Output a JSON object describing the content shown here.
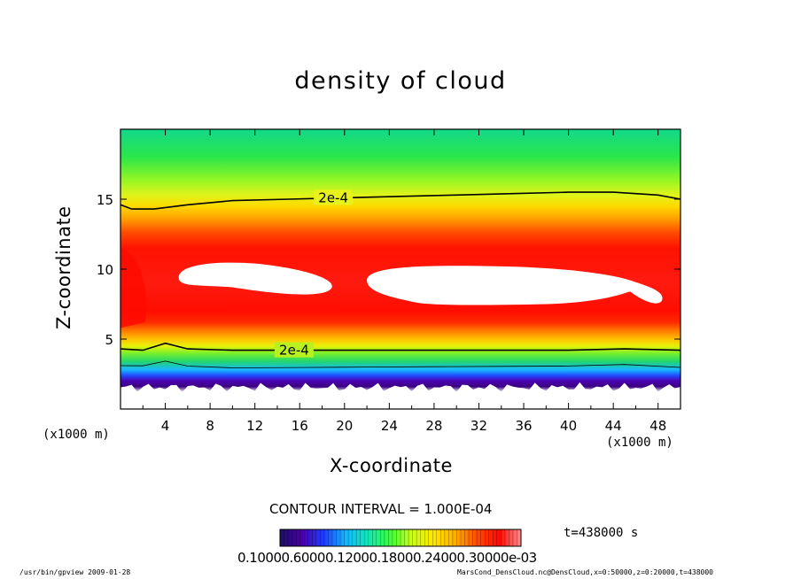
{
  "chart_data": {
    "type": "heatmap",
    "title": "density of cloud",
    "xlabel": "X-coordinate",
    "ylabel": "Z-coordinate",
    "x_unit_label": "(x1000 m)",
    "y_unit_label": "(x1000 m)",
    "xlim": [
      0,
      50
    ],
    "ylim": [
      0,
      20
    ],
    "x_ticks": [
      4,
      8,
      12,
      16,
      20,
      24,
      28,
      32,
      36,
      40,
      44,
      48
    ],
    "y_ticks": [
      5,
      10,
      15
    ],
    "contour_interval_text": "CONTOUR INTERVAL = 1.000E-04",
    "contour_label": "2e-4",
    "contour_levels_labeled": [
      {
        "level": "2e-4",
        "x": 19,
        "z": 15.1
      },
      {
        "level": "2e-4",
        "x": 15.5,
        "z": 4.2
      }
    ],
    "upper_contour_2e-4": [
      [
        0,
        14.6
      ],
      [
        1,
        14.3
      ],
      [
        3,
        14.3
      ],
      [
        6,
        14.6
      ],
      [
        10,
        14.9
      ],
      [
        15,
        15.0
      ],
      [
        20,
        15.1
      ],
      [
        25,
        15.2
      ],
      [
        30,
        15.3
      ],
      [
        35,
        15.4
      ],
      [
        40,
        15.5
      ],
      [
        44,
        15.5
      ],
      [
        48,
        15.3
      ],
      [
        50,
        15.0
      ]
    ],
    "lower_contour_2e-4": [
      [
        0,
        4.3
      ],
      [
        2,
        4.2
      ],
      [
        4,
        4.7
      ],
      [
        6,
        4.3
      ],
      [
        10,
        4.2
      ],
      [
        16,
        4.2
      ],
      [
        22,
        4.2
      ],
      [
        28,
        4.2
      ],
      [
        34,
        4.2
      ],
      [
        40,
        4.2
      ],
      [
        45,
        4.3
      ],
      [
        50,
        4.2
      ]
    ],
    "white_regions_above_max": [
      {
        "x_range": [
          5.2,
          19
        ],
        "z_range": [
          8.4,
          10.5
        ]
      },
      {
        "x_range": [
          22,
          48.5
        ],
        "z_range": [
          7.4,
          10.3
        ]
      }
    ],
    "colorbar": {
      "ticks_text": "0.10000.60000.12000.18000.24000.30000e-03",
      "colors": [
        "#1a0f60",
        "#4b00a8",
        "#1e3cff",
        "#15b6ff",
        "#12e6b8",
        "#39ff3a",
        "#c8ff1a",
        "#ffe600",
        "#ffae00",
        "#ff4a00",
        "#ff0a00",
        "#ff8c90"
      ]
    },
    "time": "t=438000 s"
  },
  "footer": {
    "left": "/usr/bin/gpview   2009-01-28",
    "right": "MarsCond_DensCloud.nc@DensCloud,x=0:50000,z=0:20000,t=438000"
  }
}
